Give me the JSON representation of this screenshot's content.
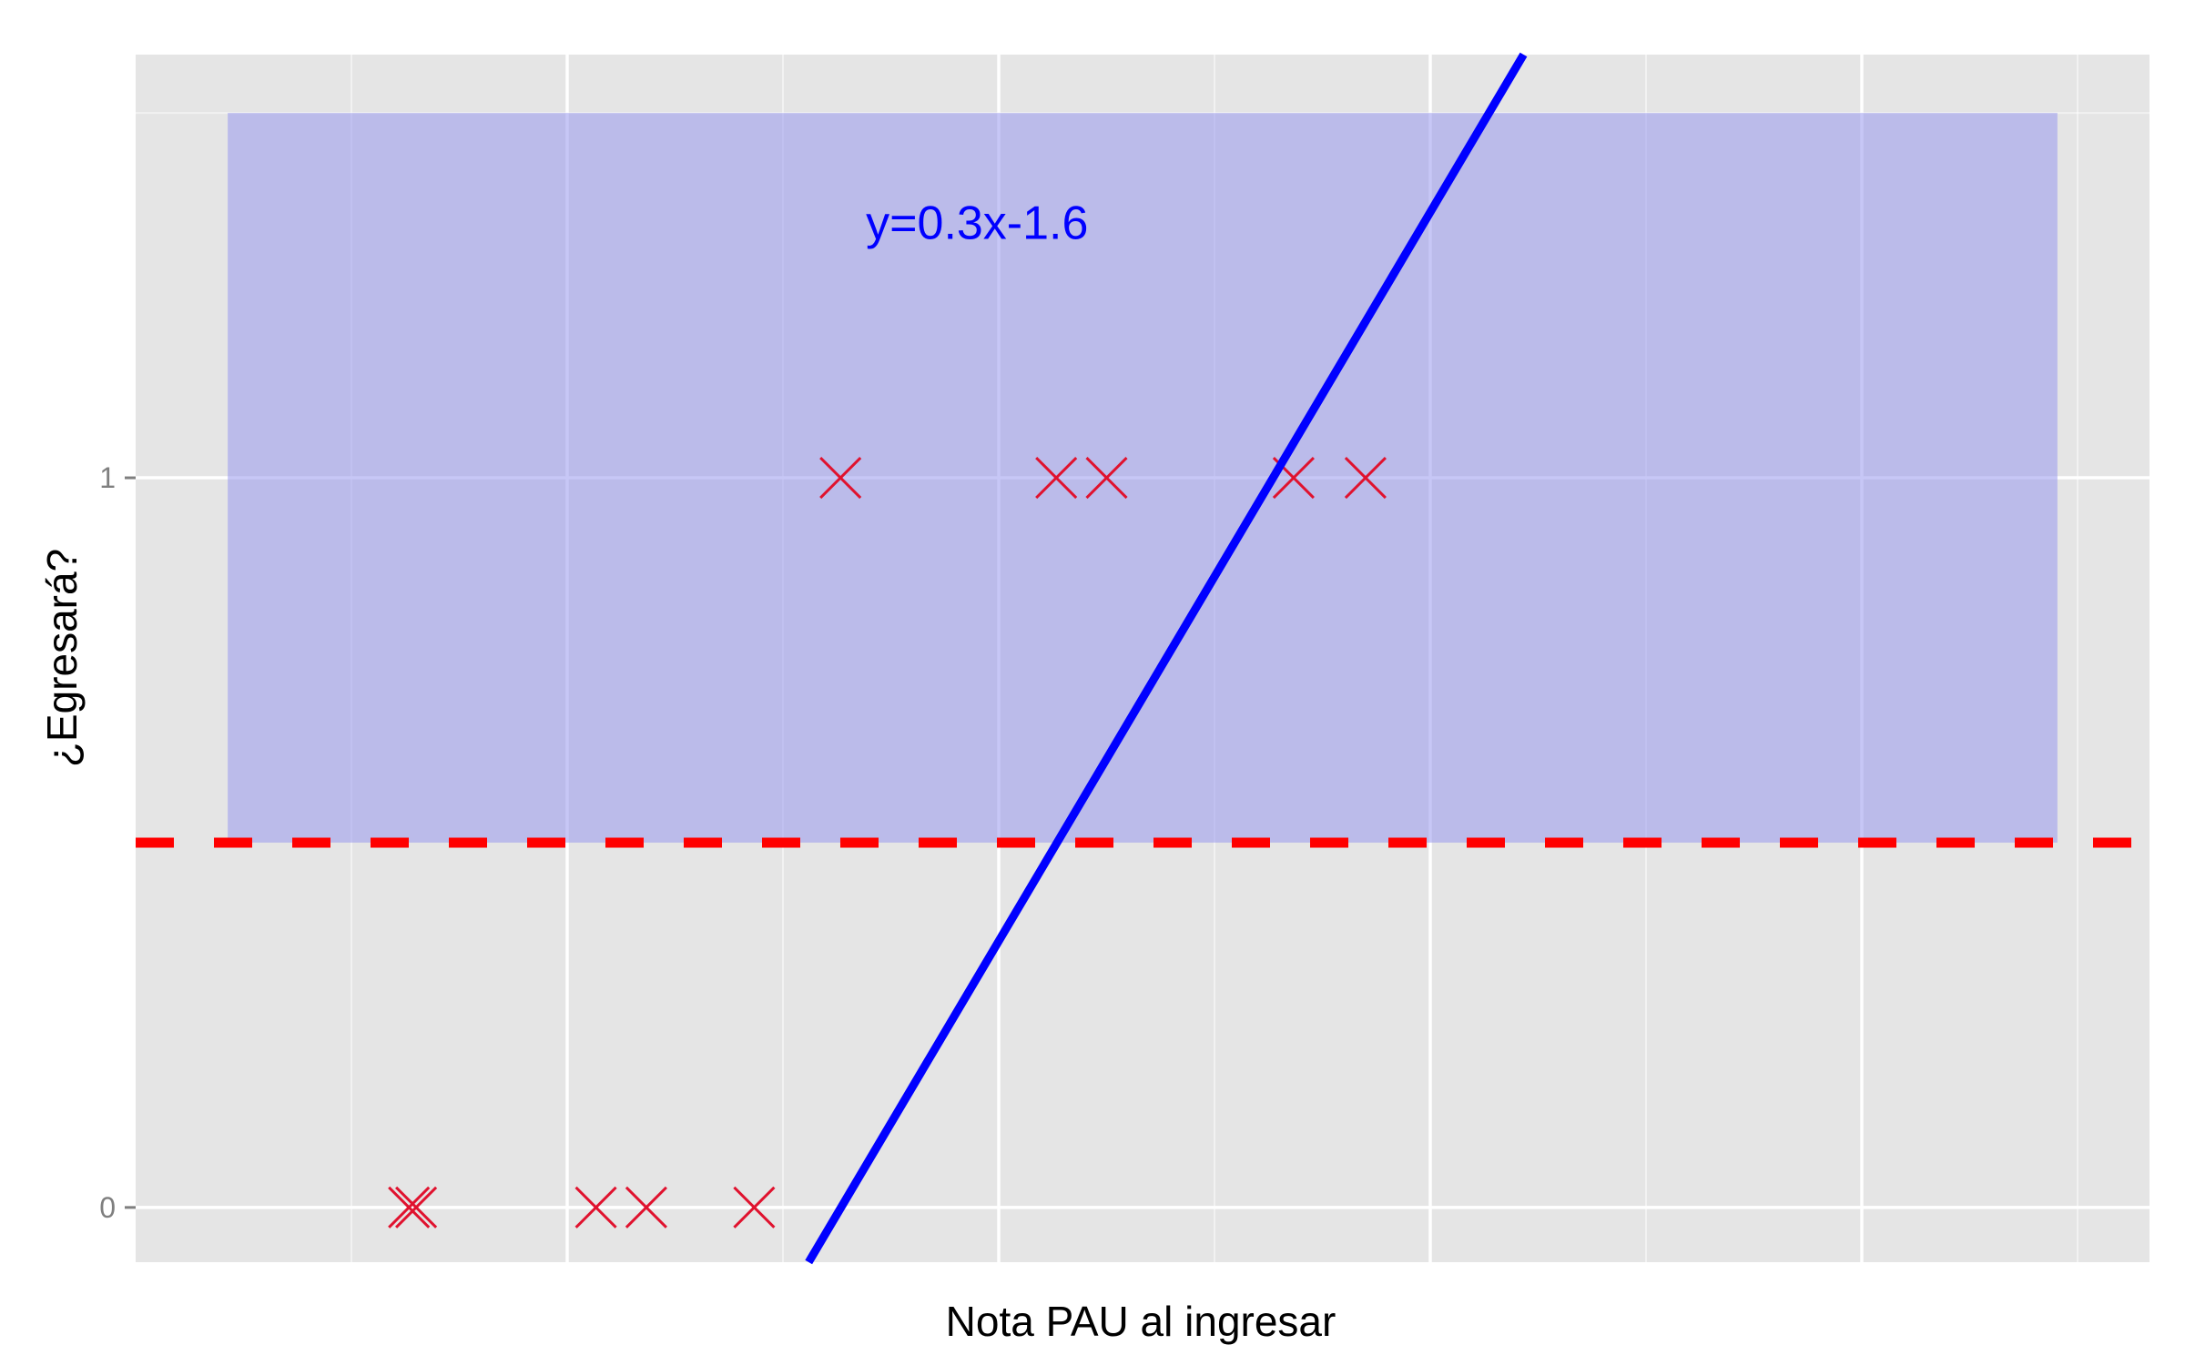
{
  "chart_data": {
    "type": "scatter",
    "title": "",
    "xlabel": "Nota PAU al ingresar",
    "ylabel": "¿Egresará?",
    "xlim": [
      0,
      14
    ],
    "ylim": [
      -0.075,
      1.58
    ],
    "x_ticks_major": [
      3,
      6,
      9,
      12
    ],
    "x_ticks_minor": [
      1.5,
      4.5,
      7.5,
      10.5,
      13.5
    ],
    "x_tick_labels_shown": false,
    "y_ticks": [
      0,
      1
    ],
    "y_tick_labels": [
      "0",
      "1"
    ],
    "y_ticks_minor": [
      1.5
    ],
    "grid": true,
    "legend": "none",
    "points": [
      {
        "x": 1.9,
        "y": 0
      },
      {
        "x": 1.95,
        "y": 0
      },
      {
        "x": 3.2,
        "y": 0
      },
      {
        "x": 3.55,
        "y": 0
      },
      {
        "x": 4.3,
        "y": 0
      },
      {
        "x": 4.9,
        "y": 1
      },
      {
        "x": 6.4,
        "y": 1
      },
      {
        "x": 6.75,
        "y": 1
      },
      {
        "x": 8.05,
        "y": 1
      },
      {
        "x": 8.55,
        "y": 1
      }
    ],
    "regression_line": {
      "slope": 0.333,
      "intercept": -1.633
    },
    "annotation": "y=0.3x-1.6",
    "annotation_position": {
      "x": 5.85,
      "y": 1.35
    },
    "threshold": 0.5,
    "shaded_region": {
      "x": [
        0.64,
        13.36
      ],
      "y": [
        0.5,
        1.5
      ]
    },
    "colors": {
      "background": "#ffffff",
      "panel": "#e5e5e5",
      "grid": "#ffffff",
      "point": "#e0122e",
      "line": "#0000ff",
      "threshold": "#ff0000",
      "shade": "#9999ee",
      "annotation": "#0000ff"
    }
  }
}
